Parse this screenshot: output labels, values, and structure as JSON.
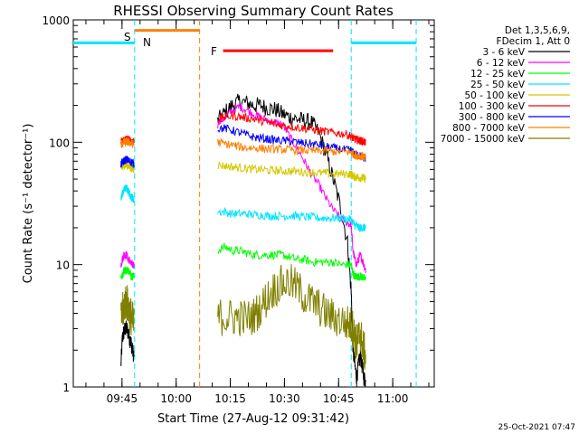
{
  "chart_data": {
    "type": "line",
    "title": "RHESSI Observing Summary Count Rates",
    "xlabel": "Start Time (27-Aug-12 09:31:42)",
    "ylabel": "Count Rate (s⁻¹ detector⁻¹)",
    "yscale": "log",
    "ylim": [
      1,
      1000
    ],
    "xlim_minutes": [
      0,
      100
    ],
    "x_ticks": [
      {
        "label": "09:45",
        "t": 13.5
      },
      {
        "label": "10:00",
        "t": 28.5
      },
      {
        "label": "10:15",
        "t": 43.5
      },
      {
        "label": "10:30",
        "t": 58.5
      },
      {
        "label": "10:45",
        "t": 73.5
      },
      {
        "label": "11:00",
        "t": 88.5
      }
    ],
    "y_ticks": [
      {
        "label": "1",
        "v": 1
      },
      {
        "label": "10",
        "v": 10
      },
      {
        "label": "100",
        "v": 100
      },
      {
        "label": "1000",
        "v": 1000
      }
    ],
    "legend_header": [
      "Det 1,3,5,6,9,",
      "FDecim 1, Att 0"
    ],
    "timestamp": "25-Oct-2021 07:47",
    "annotations": [
      {
        "text": "S",
        "color": "#ff8000"
      },
      {
        "text": "N",
        "color": "#00e5ff"
      },
      {
        "text": "F",
        "color": "#ff0000"
      }
    ],
    "state_bars": [
      {
        "name": "night",
        "color": "#00e5ff",
        "y": 650,
        "intervals": [
          [
            0,
            17
          ],
          [
            77,
            95
          ]
        ]
      },
      {
        "name": "saa",
        "color": "#ff8000",
        "y": 820,
        "intervals": [
          [
            17,
            35
          ]
        ]
      },
      {
        "name": "flare",
        "color": "#ff0000",
        "y": 560,
        "intervals": [
          [
            41.5,
            72
          ]
        ]
      }
    ],
    "boundaries": [
      {
        "t": 17,
        "color": "#00e5ff"
      },
      {
        "t": 35,
        "color": "#ff8000"
      },
      {
        "t": 77,
        "color": "#00e5ff"
      },
      {
        "t": 95,
        "color": "#00e5ff"
      }
    ],
    "x": [
      13.2,
      13.6,
      14,
      14.4,
      14.8,
      15.2,
      15.6,
      16,
      16.4,
      16.8,
      38,
      40,
      42,
      44,
      46,
      48,
      50,
      52,
      54,
      56,
      58,
      60,
      62,
      64,
      66,
      68,
      70,
      72,
      74,
      76,
      77,
      77.5,
      78,
      78.5,
      79,
      79.5,
      80,
      80.5,
      81
    ],
    "series": [
      {
        "name": "3 - 6 keV",
        "color": "#000000",
        "values": [
          1.5,
          2.5,
          2.8,
          3,
          3,
          2.8,
          2.5,
          2.3,
          2,
          1.8,
          null,
          150,
          175,
          200,
          215,
          210,
          200,
          200,
          190,
          185,
          170,
          160,
          155,
          150,
          145,
          120,
          80,
          50,
          30,
          15,
          6,
          2,
          1.5,
          1.2,
          1.5,
          1.8,
          1.5,
          1.2,
          1.1
        ]
      },
      {
        "name": "6 - 12 keV",
        "color": "#ff00ff",
        "values": [
          10,
          11,
          12,
          12,
          12,
          11,
          11,
          10,
          10,
          10,
          null,
          140,
          160,
          180,
          195,
          185,
          170,
          160,
          150,
          145,
          140,
          110,
          90,
          70,
          55,
          45,
          35,
          28,
          24,
          22,
          21,
          13,
          11,
          10,
          11,
          12,
          11,
          10,
          9
        ]
      },
      {
        "name": "12 - 25 keV",
        "color": "#00ff00",
        "values": [
          8,
          8,
          9,
          9,
          9,
          9,
          9,
          8,
          8,
          8,
          null,
          13,
          14,
          13,
          13,
          12.5,
          12,
          12,
          12,
          12,
          12,
          11.5,
          11,
          11,
          10.5,
          10.5,
          10.5,
          10.5,
          10,
          10,
          10,
          8.5,
          8,
          8,
          8,
          8,
          8,
          7.8,
          7.5
        ]
      },
      {
        "name": "25 - 50 keV",
        "color": "#00e5ff",
        "values": [
          35,
          38,
          40,
          42,
          42,
          40,
          38,
          36,
          35,
          34,
          null,
          27,
          27,
          26,
          26,
          26,
          25.5,
          25.5,
          25,
          25,
          25,
          25,
          25,
          24.5,
          24.5,
          24,
          24,
          24,
          24,
          23.5,
          23.5,
          22,
          21,
          21,
          20,
          20,
          20,
          20,
          20
        ]
      },
      {
        "name": "50 - 100 keV",
        "color": "#d4c800",
        "values": [
          60,
          62,
          65,
          65,
          65,
          64,
          63,
          62,
          61,
          60,
          null,
          65,
          64,
          63,
          62,
          61,
          60,
          60,
          59,
          59,
          58,
          58,
          58,
          57,
          57,
          56,
          56,
          55,
          55,
          55,
          55,
          53,
          52,
          52,
          52,
          51,
          51,
          51,
          50
        ]
      },
      {
        "name": "100 - 300 keV",
        "color": "#ff0000",
        "values": [
          100,
          102,
          105,
          105,
          106,
          105,
          104,
          103,
          102,
          102,
          null,
          155,
          160,
          165,
          162,
          158,
          155,
          150,
          145,
          140,
          137,
          135,
          132,
          130,
          128,
          125,
          122,
          120,
          118,
          115,
          112,
          108,
          106,
          105,
          104,
          103,
          102,
          101,
          100
        ]
      },
      {
        "name": "300 - 800 keV",
        "color": "#0000ff",
        "values": [
          66,
          68,
          70,
          72,
          72,
          71,
          70,
          69,
          68,
          67,
          null,
          130,
          130,
          125,
          120,
          115,
          110,
          108,
          106,
          104,
          103,
          102,
          100,
          98,
          97,
          95,
          92,
          90,
          88,
          86,
          85,
          82,
          80,
          79,
          78,
          77,
          76,
          75,
          74
        ]
      },
      {
        "name": "800 - 7000 keV",
        "color": "#ff8000",
        "values": [
          95,
          97,
          100,
          100,
          101,
          100,
          99,
          98,
          97,
          97,
          null,
          100,
          97,
          95,
          92,
          90,
          90,
          89,
          88,
          88,
          87,
          87,
          86,
          86,
          85,
          85,
          85,
          84,
          84,
          83,
          83,
          80,
          79,
          78,
          78,
          77,
          77,
          76,
          75
        ]
      },
      {
        "name": "7000 - 15000 keV",
        "color": "#808000",
        "values": [
          3.5,
          4,
          4.5,
          5,
          5,
          4.5,
          4,
          3.8,
          3.5,
          3.2,
          null,
          3.8,
          3.7,
          3.7,
          3.7,
          3.6,
          3.8,
          4.5,
          5.5,
          6.5,
          7,
          7.2,
          6.5,
          5.5,
          5,
          4.5,
          4,
          3.7,
          3.5,
          3.3,
          3.2,
          3,
          2.5,
          2.2,
          2.5,
          2.8,
          2.3,
          2,
          1.8
        ]
      }
    ]
  }
}
